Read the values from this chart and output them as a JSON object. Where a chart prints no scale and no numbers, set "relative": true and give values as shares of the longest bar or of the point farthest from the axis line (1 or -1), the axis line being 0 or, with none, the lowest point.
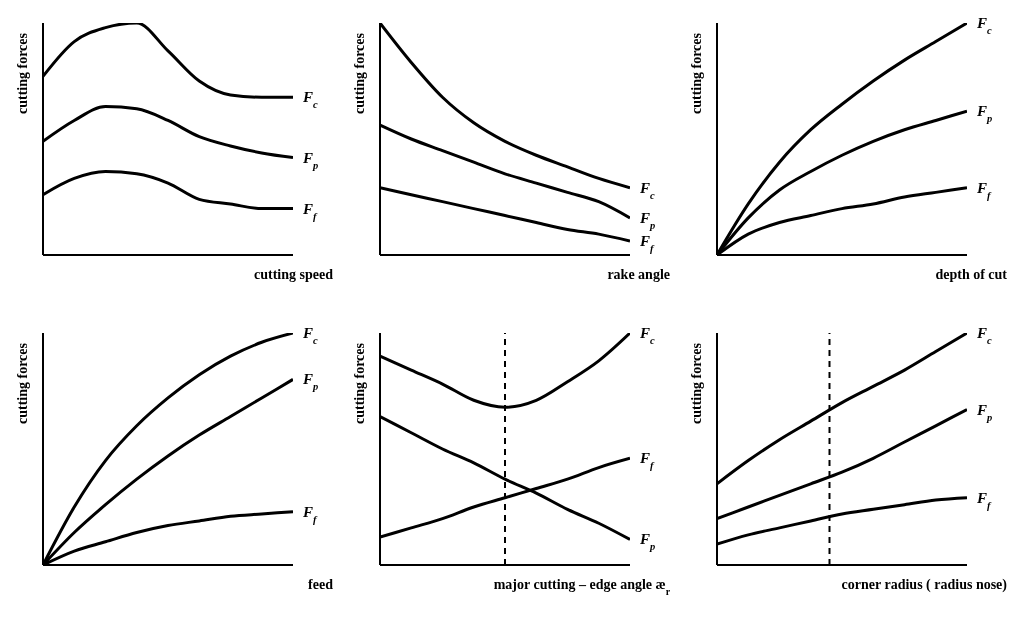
{
  "chart_data": [
    {
      "type": "line",
      "relative": true,
      "ylabel": "cutting forces",
      "xlabel": "cutting speed",
      "categories": [
        null,
        null,
        null,
        null,
        null,
        null,
        null,
        null,
        null
      ],
      "series": [
        {
          "name": "F$_{c}$",
          "color": "#000000",
          "values": [
            0.77,
            0.92,
            0.98,
            1,
            0.88,
            0.75,
            0.69,
            0.68,
            0.68
          ]
        },
        {
          "name": "F$_{p}$",
          "color": "#000000",
          "values": [
            0.49,
            0.58,
            0.64,
            0.63,
            0.58,
            0.51,
            0.47,
            0.44,
            0.42
          ]
        },
        {
          "name": "F$_{f}$",
          "color": "#000000",
          "values": [
            0.26,
            0.33,
            0.36,
            0.35,
            0.31,
            0.24,
            0.22,
            0.2,
            0.2
          ]
        }
      ],
      "marker": "none",
      "line_style": "solid",
      "grid": false,
      "legend": false
    },
    {
      "type": "line",
      "relative": true,
      "ylabel": "cutting forces",
      "xlabel": "rake angle",
      "categories": [
        null,
        null,
        null,
        null,
        null,
        null,
        null,
        null,
        null
      ],
      "series": [
        {
          "name": "F$_{c}$",
          "color": "#000000",
          "values": [
            1,
            0.83,
            0.68,
            0.57,
            0.49,
            0.43,
            0.38,
            0.33,
            0.29
          ]
        },
        {
          "name": "F$_{p}$",
          "color": "#000000",
          "values": [
            0.56,
            0.5,
            0.45,
            0.4,
            0.35,
            0.31,
            0.27,
            0.23,
            0.16
          ]
        },
        {
          "name": "F$_{f}$",
          "color": "#000000",
          "values": [
            0.29,
            0.26,
            0.23,
            0.2,
            0.17,
            0.14,
            0.11,
            0.09,
            0.06
          ]
        }
      ],
      "marker": "none",
      "line_style": "solid",
      "grid": false,
      "legend": false
    },
    {
      "type": "line",
      "relative": true,
      "ylabel": "cutting forces",
      "xlabel": "depth of cut",
      "categories": [
        null,
        null,
        null,
        null,
        null,
        null,
        null,
        null,
        null
      ],
      "series": [
        {
          "name": "F$_{c}$",
          "color": "#000000",
          "values": [
            0,
            0.22,
            0.4,
            0.54,
            0.65,
            0.75,
            0.84,
            0.92,
            1
          ]
        },
        {
          "name": "F$_{p}$",
          "color": "#000000",
          "values": [
            0,
            0.16,
            0.28,
            0.36,
            0.43,
            0.49,
            0.54,
            0.58,
            0.62
          ]
        },
        {
          "name": "F$_{f}$",
          "color": "#000000",
          "values": [
            0,
            0.09,
            0.14,
            0.17,
            0.2,
            0.22,
            0.25,
            0.27,
            0.29
          ]
        }
      ],
      "marker": "none",
      "line_style": "solid",
      "grid": false,
      "legend": false
    },
    {
      "type": "line",
      "relative": true,
      "ylabel": "cutting forces",
      "xlabel": "feed",
      "categories": [
        null,
        null,
        null,
        null,
        null,
        null,
        null,
        null,
        null
      ],
      "series": [
        {
          "name": "F$_{c}$",
          "color": "#000000",
          "values": [
            0,
            0.25,
            0.45,
            0.6,
            0.72,
            0.82,
            0.9,
            0.96,
            1
          ]
        },
        {
          "name": "F$_{p}$",
          "color": "#000000",
          "values": [
            0,
            0.14,
            0.26,
            0.37,
            0.47,
            0.56,
            0.64,
            0.72,
            0.8
          ]
        },
        {
          "name": "F$_{f}$",
          "color": "#000000",
          "values": [
            0,
            0.06,
            0.1,
            0.14,
            0.17,
            0.19,
            0.21,
            0.22,
            0.23
          ]
        }
      ],
      "marker": "none",
      "line_style": "solid",
      "grid": false,
      "legend": false
    },
    {
      "type": "line",
      "relative": true,
      "ylabel": "cutting forces",
      "xlabel": "major cutting – edge angle æ$_{r}$",
      "categories": [
        null,
        null,
        null,
        null,
        null,
        null,
        null,
        null,
        null
      ],
      "series": [
        {
          "name": "F$_{c}$",
          "color": "#000000",
          "values": [
            0.9,
            0.84,
            0.78,
            0.71,
            0.68,
            0.71,
            0.79,
            0.88,
            1
          ]
        },
        {
          "name": "F$_{f}$",
          "color": "#000000",
          "values": [
            0.12,
            0.16,
            0.2,
            0.25,
            0.29,
            0.33,
            0.37,
            0.42,
            0.46
          ]
        },
        {
          "name": "F$_{p}$",
          "color": "#000000",
          "values": [
            0.64,
            0.57,
            0.5,
            0.44,
            0.37,
            0.31,
            0.24,
            0.18,
            0.11
          ]
        }
      ],
      "marker": "none",
      "line_style": "solid",
      "grid": false,
      "legend": false
    },
    {
      "type": "line",
      "relative": true,
      "ylabel": "cutting forces",
      "xlabel": "corner radius ( radius nose)",
      "categories": [
        null,
        null,
        null,
        null,
        null,
        null,
        null,
        null,
        null
      ],
      "series": [
        {
          "name": "F$_{c}$",
          "color": "#000000",
          "values": [
            0.35,
            0.45,
            0.54,
            0.62,
            0.7,
            0.77,
            0.84,
            0.92,
            1
          ]
        },
        {
          "name": "F$_{p}$",
          "color": "#000000",
          "values": [
            0.2,
            0.25,
            0.3,
            0.35,
            0.4,
            0.46,
            0.53,
            0.6,
            0.67
          ]
        },
        {
          "name": "F$_{f}$",
          "color": "#000000",
          "values": [
            0.09,
            0.13,
            0.16,
            0.19,
            0.22,
            0.24,
            0.26,
            0.28,
            0.29
          ]
        }
      ],
      "marker": "none",
      "line_style": "solid",
      "grid": false,
      "legend": false
    }
  ]
}
